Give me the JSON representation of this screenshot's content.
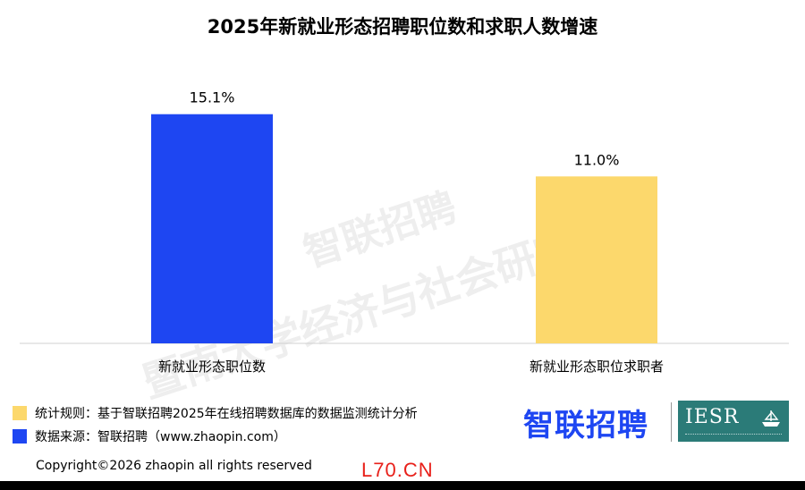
{
  "title": "2025年新就业形态招聘职位数和求职人数增速",
  "colors": {
    "blue": "#1e46f2",
    "yellow": "#fcd86c",
    "brand_teal": "#2b7b78",
    "site_red": "#e8201a"
  },
  "chart_data": {
    "type": "bar",
    "title": "2025年新就业形态招聘职位数和求职人数增速",
    "categories": [
      "新就业形态职位数",
      "新就业形态职位求职者"
    ],
    "values": [
      15.1,
      11.0
    ],
    "value_labels": [
      "15.1%",
      "11.0%"
    ],
    "colors": [
      "#1e46f2",
      "#fcd86c"
    ],
    "unit": "%",
    "ylim": [
      0,
      18.5
    ],
    "grid": false
  },
  "watermark": {
    "line1": "智联招聘",
    "line2": "暨南大学经济与社会研究院"
  },
  "legend": {
    "items": [
      {
        "label": "统计规则：基于智联招聘2025年在线招聘数据库的数据监测统计分析",
        "color": "#fcd86c"
      },
      {
        "label": "数据来源：智联招聘（www.zhaopin.com）",
        "color": "#1e46f2"
      }
    ]
  },
  "footer": {
    "copyright": "Copyright©2026 zhaopin all rights reserved",
    "site": "L70.CN"
  },
  "logos": {
    "zhaopin": "智联招聘",
    "iesr": "IESR",
    "iesr_icon": "ship-icon"
  }
}
